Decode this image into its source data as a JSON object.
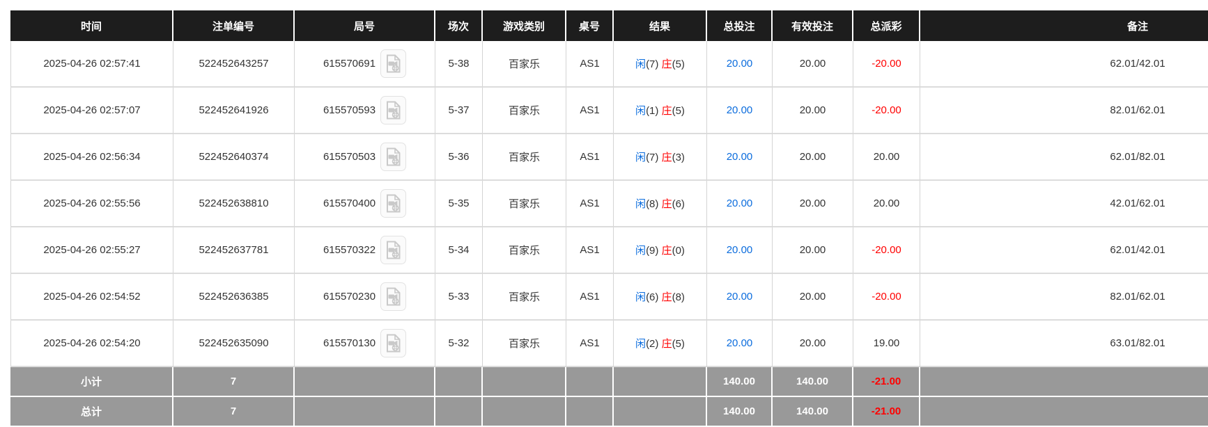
{
  "colors": {
    "header_bg": "#1d1d1d",
    "header_text": "#ffffff",
    "body_text": "#333333",
    "accent_blue": "#0b6cdd",
    "negative_red": "#ff0000",
    "summary_bg": "#999999",
    "summary_text": "#ffffff",
    "row_border": "#dcdcdc"
  },
  "icons": {
    "round_cell_icon": "video-replay-icon"
  },
  "table": {
    "headers": [
      {
        "key": "time",
        "label": "时间"
      },
      {
        "key": "bet-id",
        "label": "注单编号"
      },
      {
        "key": "round-id",
        "label": "局号"
      },
      {
        "key": "session",
        "label": "场次"
      },
      {
        "key": "game-type",
        "label": "游戏类别"
      },
      {
        "key": "table-no",
        "label": "桌号"
      },
      {
        "key": "result",
        "label": "结果"
      },
      {
        "key": "total-bet",
        "label": "总投注"
      },
      {
        "key": "valid-bet",
        "label": "有效投注"
      },
      {
        "key": "payout",
        "label": "总派彩"
      },
      {
        "key": "remark",
        "label": "备注"
      }
    ],
    "rows": [
      {
        "time": "2025-04-26 02:57:41",
        "bet_id": "522452643257",
        "round_id": "615570691",
        "session": "5-38",
        "game_type": "百家乐",
        "table_no": "AS1",
        "result": {
          "player_label": "闲",
          "player_score": "(7)",
          "banker_label": "庄",
          "banker_score": "(5)"
        },
        "total_bet": "20.00",
        "valid_bet": "20.00",
        "payout": "-20.00",
        "remark": "62.01/42.01"
      },
      {
        "time": "2025-04-26 02:57:07",
        "bet_id": "522452641926",
        "round_id": "615570593",
        "session": "5-37",
        "game_type": "百家乐",
        "table_no": "AS1",
        "result": {
          "player_label": "闲",
          "player_score": "(1)",
          "banker_label": "庄",
          "banker_score": "(5)"
        },
        "total_bet": "20.00",
        "valid_bet": "20.00",
        "payout": "-20.00",
        "remark": "82.01/62.01"
      },
      {
        "time": "2025-04-26 02:56:34",
        "bet_id": "522452640374",
        "round_id": "615570503",
        "session": "5-36",
        "game_type": "百家乐",
        "table_no": "AS1",
        "result": {
          "player_label": "闲",
          "player_score": "(7)",
          "banker_label": "庄",
          "banker_score": "(3)"
        },
        "total_bet": "20.00",
        "valid_bet": "20.00",
        "payout": "20.00",
        "remark": "62.01/82.01"
      },
      {
        "time": "2025-04-26 02:55:56",
        "bet_id": "522452638810",
        "round_id": "615570400",
        "session": "5-35",
        "game_type": "百家乐",
        "table_no": "AS1",
        "result": {
          "player_label": "闲",
          "player_score": "(8)",
          "banker_label": "庄",
          "banker_score": "(6)"
        },
        "total_bet": "20.00",
        "valid_bet": "20.00",
        "payout": "20.00",
        "remark": "42.01/62.01"
      },
      {
        "time": "2025-04-26 02:55:27",
        "bet_id": "522452637781",
        "round_id": "615570322",
        "session": "5-34",
        "game_type": "百家乐",
        "table_no": "AS1",
        "result": {
          "player_label": "闲",
          "player_score": "(9)",
          "banker_label": "庄",
          "banker_score": "(0)"
        },
        "total_bet": "20.00",
        "valid_bet": "20.00",
        "payout": "-20.00",
        "remark": "62.01/42.01"
      },
      {
        "time": "2025-04-26 02:54:52",
        "bet_id": "522452636385",
        "round_id": "615570230",
        "session": "5-33",
        "game_type": "百家乐",
        "table_no": "AS1",
        "result": {
          "player_label": "闲",
          "player_score": "(6)",
          "banker_label": "庄",
          "banker_score": "(8)"
        },
        "total_bet": "20.00",
        "valid_bet": "20.00",
        "payout": "-20.00",
        "remark": "82.01/62.01"
      },
      {
        "time": "2025-04-26 02:54:20",
        "bet_id": "522452635090",
        "round_id": "615570130",
        "session": "5-32",
        "game_type": "百家乐",
        "table_no": "AS1",
        "result": {
          "player_label": "闲",
          "player_score": "(2)",
          "banker_label": "庄",
          "banker_score": "(5)"
        },
        "total_bet": "20.00",
        "valid_bet": "20.00",
        "payout": "19.00",
        "remark": "63.01/82.01"
      }
    ],
    "summary_rows": [
      {
        "label": "小计",
        "count": "7",
        "total_bet": "140.00",
        "valid_bet": "140.00",
        "payout": "-21.00"
      },
      {
        "label": "总计",
        "count": "7",
        "total_bet": "140.00",
        "valid_bet": "140.00",
        "payout": "-21.00"
      }
    ]
  }
}
